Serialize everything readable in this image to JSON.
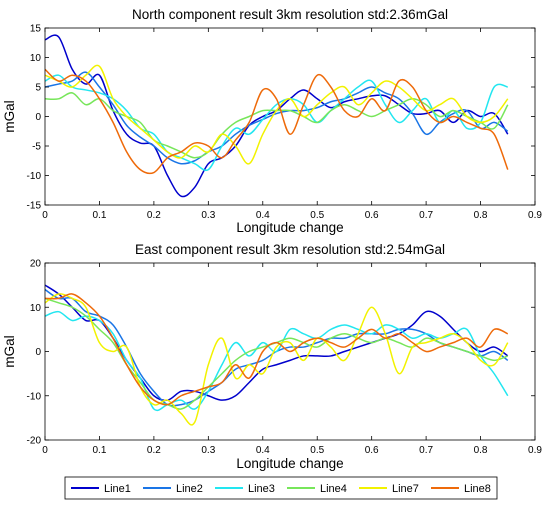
{
  "legend": {
    "placement": "bottom",
    "entries": [
      "Line1",
      "Line2",
      "Line3",
      "Line4",
      "Line7",
      "Line8"
    ]
  },
  "colors": {
    "Line1": "#0000cc",
    "Line2": "#1a75e6",
    "Line3": "#22e6f0",
    "Line4": "#77e65a",
    "Line7": "#f2f200",
    "Line8": "#ee6a0a"
  },
  "chart_data": [
    {
      "type": "line",
      "title": "North component result 3km resolution std:2.36mGal",
      "xlabel": "Longitude change",
      "ylabel": "mGal",
      "xlim": [
        0,
        0.9
      ],
      "ylim": [
        -15,
        15
      ],
      "xticks": [
        0,
        0.1,
        0.2,
        0.3,
        0.4,
        0.5,
        0.6,
        0.7,
        0.8,
        0.9
      ],
      "yticks": [
        -15,
        -10,
        -5,
        0,
        5,
        10,
        15
      ],
      "xtick_labels": [
        "0",
        "0.1",
        "0.2",
        "0.3",
        "0.4",
        "0.5",
        "0.6",
        "0.7",
        "0.8",
        "0.9"
      ],
      "ytick_labels": [
        "-15",
        "-10",
        "-5",
        "0",
        "5",
        "10",
        "15"
      ],
      "grid": false,
      "series": [
        {
          "name": "Line1",
          "x": [
            0,
            0.025,
            0.05,
            0.075,
            0.1,
            0.125,
            0.15,
            0.175,
            0.2,
            0.225,
            0.25,
            0.275,
            0.3,
            0.325,
            0.35,
            0.375,
            0.4,
            0.425,
            0.45,
            0.475,
            0.5,
            0.525,
            0.55,
            0.575,
            0.6,
            0.625,
            0.65,
            0.675,
            0.7,
            0.725,
            0.75,
            0.775,
            0.8,
            0.825,
            0.85
          ],
          "y": [
            13,
            13.5,
            8,
            5.5,
            7,
            1,
            -3,
            -4.5,
            -5,
            -10,
            -13.5,
            -12,
            -8,
            -7,
            -5,
            -1.5,
            0,
            1,
            3,
            4.5,
            3,
            1.5,
            2.5,
            3,
            3.5,
            3.5,
            2,
            0.5,
            0.5,
            1,
            -1,
            1,
            0,
            0.5,
            -3
          ]
        },
        {
          "name": "Line2",
          "x": [
            0,
            0.025,
            0.05,
            0.075,
            0.1,
            0.125,
            0.15,
            0.175,
            0.2,
            0.225,
            0.25,
            0.275,
            0.3,
            0.325,
            0.35,
            0.375,
            0.4,
            0.425,
            0.45,
            0.475,
            0.5,
            0.525,
            0.55,
            0.575,
            0.6,
            0.625,
            0.65,
            0.675,
            0.7,
            0.725,
            0.75,
            0.775,
            0.8,
            0.825,
            0.85
          ],
          "y": [
            5,
            5.5,
            6,
            7.5,
            5,
            2,
            -1.5,
            -3.5,
            -5,
            -7,
            -8,
            -7.5,
            -6,
            -5,
            -3,
            -1.5,
            -0.5,
            0.5,
            1,
            1,
            1.5,
            2.5,
            3,
            4,
            5,
            4,
            3,
            0.5,
            -3,
            -1,
            0.5,
            1,
            -2,
            -1,
            -2.5
          ]
        },
        {
          "name": "Line3",
          "x": [
            0,
            0.025,
            0.05,
            0.075,
            0.1,
            0.125,
            0.15,
            0.175,
            0.2,
            0.225,
            0.25,
            0.275,
            0.3,
            0.325,
            0.35,
            0.375,
            0.4,
            0.425,
            0.45,
            0.475,
            0.5,
            0.525,
            0.55,
            0.575,
            0.6,
            0.625,
            0.65,
            0.675,
            0.7,
            0.725,
            0.75,
            0.775,
            0.8,
            0.825,
            0.85
          ],
          "y": [
            6,
            7,
            5,
            4.5,
            4,
            3,
            1,
            -2,
            -3,
            -6,
            -7,
            -8,
            -9,
            -5,
            -2,
            -3,
            -0.5,
            2,
            3,
            2,
            -1,
            1,
            3,
            5,
            6,
            2,
            -1,
            1,
            3,
            -1,
            1,
            -2,
            -1,
            5,
            5
          ]
        },
        {
          "name": "Line4",
          "x": [
            0,
            0.025,
            0.05,
            0.075,
            0.1,
            0.125,
            0.15,
            0.175,
            0.2,
            0.225,
            0.25,
            0.275,
            0.3,
            0.325,
            0.35,
            0.375,
            0.4,
            0.425,
            0.45,
            0.475,
            0.5,
            0.525,
            0.55,
            0.575,
            0.6,
            0.625,
            0.65,
            0.675,
            0.7,
            0.725,
            0.75,
            0.775,
            0.8,
            0.825,
            0.85
          ],
          "y": [
            3,
            3,
            4,
            2,
            3,
            1,
            0,
            -1,
            -4,
            -5,
            -6,
            -7,
            -6,
            -3,
            -1,
            0,
            1,
            1,
            1,
            0,
            -1,
            1,
            2,
            1,
            0,
            1,
            2,
            3,
            2,
            0,
            1,
            0,
            -1,
            -2,
            2
          ]
        },
        {
          "name": "Line7",
          "x": [
            0,
            0.025,
            0.05,
            0.075,
            0.1,
            0.125,
            0.15,
            0.175,
            0.2,
            0.225,
            0.25,
            0.275,
            0.3,
            0.325,
            0.35,
            0.375,
            0.4,
            0.425,
            0.45,
            0.475,
            0.5,
            0.525,
            0.55,
            0.575,
            0.6,
            0.625,
            0.65,
            0.675,
            0.7,
            0.725,
            0.75,
            0.775,
            0.8,
            0.825,
            0.85
          ],
          "y": [
            7,
            6,
            5,
            7,
            8.5,
            3,
            0,
            -2,
            -4,
            -6,
            -7,
            -5,
            -6,
            -3,
            -5,
            -8,
            -3,
            1,
            3,
            0,
            2,
            4,
            5,
            2,
            4,
            6,
            5,
            3,
            1,
            2,
            3,
            0,
            -1,
            0,
            3
          ]
        },
        {
          "name": "Line8",
          "x": [
            0,
            0.025,
            0.05,
            0.075,
            0.1,
            0.125,
            0.15,
            0.175,
            0.2,
            0.225,
            0.25,
            0.275,
            0.3,
            0.325,
            0.35,
            0.375,
            0.4,
            0.425,
            0.45,
            0.475,
            0.5,
            0.525,
            0.55,
            0.575,
            0.6,
            0.625,
            0.65,
            0.675,
            0.7,
            0.725,
            0.75,
            0.775,
            0.8,
            0.825,
            0.85
          ],
          "y": [
            8,
            6,
            7,
            6,
            3,
            -1,
            -6,
            -9,
            -9.5,
            -7,
            -6,
            -4.5,
            -5,
            -7,
            -4,
            -1,
            4.5,
            3,
            -3,
            2,
            7,
            5,
            1,
            0,
            3,
            1,
            6,
            5,
            1,
            -1,
            0,
            -1,
            -2,
            -3,
            -9
          ]
        }
      ]
    },
    {
      "type": "line",
      "title": "East component result 3km resolution std:2.54mGal",
      "xlabel": "Longitude change",
      "ylabel": "mGal",
      "xlim": [
        0,
        0.9
      ],
      "ylim": [
        -20,
        20
      ],
      "xticks": [
        0,
        0.1,
        0.2,
        0.3,
        0.4,
        0.5,
        0.6,
        0.7,
        0.8,
        0.9
      ],
      "yticks": [
        -20,
        -10,
        0,
        10,
        20
      ],
      "xtick_labels": [
        "0",
        "0.1",
        "0.2",
        "0.3",
        "0.4",
        "0.5",
        "0.6",
        "0.7",
        "0.8",
        "0.9"
      ],
      "ytick_labels": [
        "-20",
        "-10",
        "0",
        "10",
        "20"
      ],
      "grid": false,
      "series": [
        {
          "name": "Line1",
          "x": [
            0,
            0.025,
            0.05,
            0.075,
            0.1,
            0.125,
            0.15,
            0.175,
            0.2,
            0.225,
            0.25,
            0.275,
            0.3,
            0.325,
            0.35,
            0.375,
            0.4,
            0.425,
            0.45,
            0.475,
            0.5,
            0.525,
            0.55,
            0.575,
            0.6,
            0.625,
            0.65,
            0.675,
            0.7,
            0.725,
            0.75,
            0.775,
            0.8,
            0.825,
            0.85
          ],
          "y": [
            15,
            13,
            10,
            7,
            7,
            3,
            -2,
            -6,
            -10,
            -11,
            -9,
            -9,
            -10,
            -11,
            -10,
            -7,
            -4,
            -3,
            -2,
            -1,
            -1,
            -1,
            0,
            1,
            2,
            3,
            4,
            6,
            9,
            8,
            5,
            2,
            0,
            1,
            -1
          ]
        },
        {
          "name": "Line2",
          "x": [
            0,
            0.025,
            0.05,
            0.075,
            0.1,
            0.125,
            0.15,
            0.175,
            0.2,
            0.225,
            0.25,
            0.275,
            0.3,
            0.325,
            0.35,
            0.375,
            0.4,
            0.425,
            0.45,
            0.475,
            0.5,
            0.525,
            0.55,
            0.575,
            0.6,
            0.625,
            0.65,
            0.675,
            0.7,
            0.725,
            0.75,
            0.775,
            0.8,
            0.825,
            0.85
          ],
          "y": [
            14,
            12,
            12,
            9,
            8,
            6,
            1,
            -5,
            -9,
            -12,
            -12,
            -11,
            -9,
            -7,
            -4,
            -3,
            -2,
            0,
            1,
            1,
            2,
            3,
            3,
            4,
            4,
            4,
            5,
            5,
            4,
            2,
            1,
            0,
            -1,
            0,
            -2
          ]
        },
        {
          "name": "Line3",
          "x": [
            0,
            0.025,
            0.05,
            0.075,
            0.1,
            0.125,
            0.15,
            0.175,
            0.2,
            0.225,
            0.25,
            0.275,
            0.3,
            0.325,
            0.35,
            0.375,
            0.4,
            0.425,
            0.45,
            0.475,
            0.5,
            0.525,
            0.55,
            0.575,
            0.6,
            0.625,
            0.65,
            0.675,
            0.7,
            0.725,
            0.75,
            0.775,
            0.8,
            0.825,
            0.85
          ],
          "y": [
            8,
            9,
            7,
            8,
            7,
            4,
            -2,
            -6,
            -13,
            -12,
            -11,
            -13,
            -9,
            -3,
            2,
            -1,
            2,
            0,
            5,
            4,
            3,
            5,
            6,
            5,
            4,
            6,
            5,
            3,
            4,
            3,
            4,
            5,
            -1,
            -5,
            -10
          ]
        },
        {
          "name": "Line4",
          "x": [
            0,
            0.025,
            0.05,
            0.075,
            0.1,
            0.125,
            0.15,
            0.175,
            0.2,
            0.225,
            0.25,
            0.275,
            0.3,
            0.325,
            0.35,
            0.375,
            0.4,
            0.425,
            0.45,
            0.475,
            0.5,
            0.525,
            0.55,
            0.575,
            0.6,
            0.625,
            0.65,
            0.675,
            0.7,
            0.725,
            0.75,
            0.775,
            0.8,
            0.825,
            0.85
          ],
          "y": [
            12,
            11,
            10,
            8,
            5,
            2,
            -3,
            -7,
            -11,
            -12,
            -13,
            -11,
            -8,
            -5,
            -2,
            0,
            1,
            2,
            3,
            2,
            1,
            3,
            4,
            3,
            2,
            3,
            2,
            1,
            3,
            2,
            1,
            0,
            -1,
            -2,
            -1
          ]
        },
        {
          "name": "Line7",
          "x": [
            0,
            0.025,
            0.05,
            0.075,
            0.1,
            0.125,
            0.15,
            0.175,
            0.2,
            0.225,
            0.25,
            0.275,
            0.3,
            0.325,
            0.35,
            0.375,
            0.4,
            0.425,
            0.45,
            0.475,
            0.5,
            0.525,
            0.55,
            0.575,
            0.6,
            0.625,
            0.65,
            0.675,
            0.7,
            0.725,
            0.75,
            0.775,
            0.8,
            0.825,
            0.85
          ],
          "y": [
            11,
            13,
            12,
            10,
            2,
            0,
            1,
            -8,
            -12,
            -11,
            -14,
            -16,
            -3,
            3,
            -6,
            -3,
            -5,
            1,
            2,
            -2,
            3,
            1,
            -2,
            4,
            10,
            4,
            -5,
            1,
            2,
            3,
            4,
            2,
            -2,
            -3,
            2
          ]
        },
        {
          "name": "Line8",
          "x": [
            0,
            0.025,
            0.05,
            0.075,
            0.1,
            0.125,
            0.15,
            0.175,
            0.2,
            0.225,
            0.25,
            0.275,
            0.3,
            0.325,
            0.35,
            0.375,
            0.4,
            0.425,
            0.45,
            0.475,
            0.5,
            0.525,
            0.55,
            0.575,
            0.6,
            0.625,
            0.65,
            0.675,
            0.7,
            0.725,
            0.75,
            0.775,
            0.8,
            0.825,
            0.85
          ],
          "y": [
            12,
            12,
            13,
            11,
            8,
            3,
            -3,
            -8,
            -11,
            -12,
            -10,
            -9,
            -8,
            -7,
            -3,
            -6,
            0,
            2,
            0,
            2,
            3,
            2,
            1,
            3,
            5,
            3,
            4,
            2,
            0,
            1,
            2,
            3,
            1,
            5,
            4
          ]
        }
      ]
    }
  ]
}
